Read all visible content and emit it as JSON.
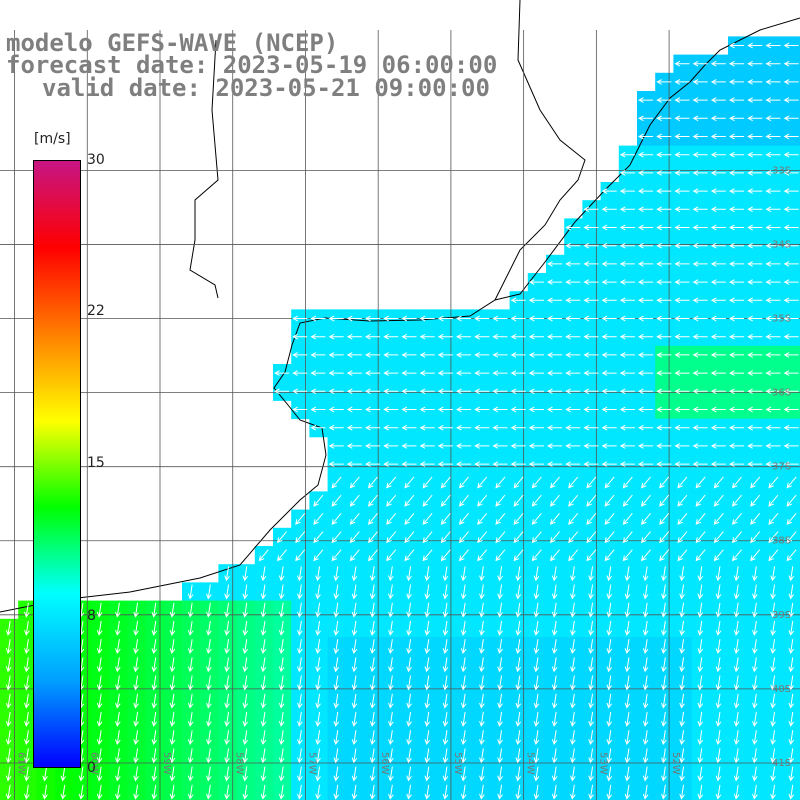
{
  "title": {
    "line1": "modelo GEFS-WAVE (NCEP)",
    "line2": "forecast date: 2023-05-19 06:00:00",
    "line3": "valid date: 2023-05-21 09:00:00"
  },
  "colorbar": {
    "unit": "[m/s]",
    "ticks": [
      "30",
      "22",
      "15",
      "8",
      "0"
    ],
    "tick_values": [
      30,
      22,
      15,
      8,
      0
    ],
    "colors": [
      "#0000ff",
      "#00a0ff",
      "#00ffff",
      "#00ff00",
      "#ffff00",
      "#ff7f00",
      "#ff0000",
      "#c71585"
    ]
  },
  "map": {
    "region": "Rio de la Plata / South Atlantic",
    "lat_labels": [
      "33S",
      "34S",
      "35S",
      "36S",
      "37S",
      "38S",
      "39S",
      "40S",
      "41S"
    ],
    "lat_values": [
      -33,
      -34,
      -35,
      -36,
      -37,
      -38,
      -39,
      -40,
      -41
    ],
    "lon_labels": [
      "61W",
      "60W",
      "59W",
      "58W",
      "57W",
      "56W",
      "55W",
      "54W",
      "53W",
      "52W"
    ],
    "lon_values": [
      -61,
      -60,
      -59,
      -58,
      -57,
      -56,
      -55,
      -54,
      -53,
      -52
    ],
    "lon_range": [
      -61.2,
      -50.2
    ],
    "lat_range": [
      -30.7,
      -41.5
    ],
    "land_color": "#ffffff",
    "grid": true,
    "wind_direction": "from north-east / east (arrows pointing west and south-west)",
    "typical_speed_ms": 8
  }
}
